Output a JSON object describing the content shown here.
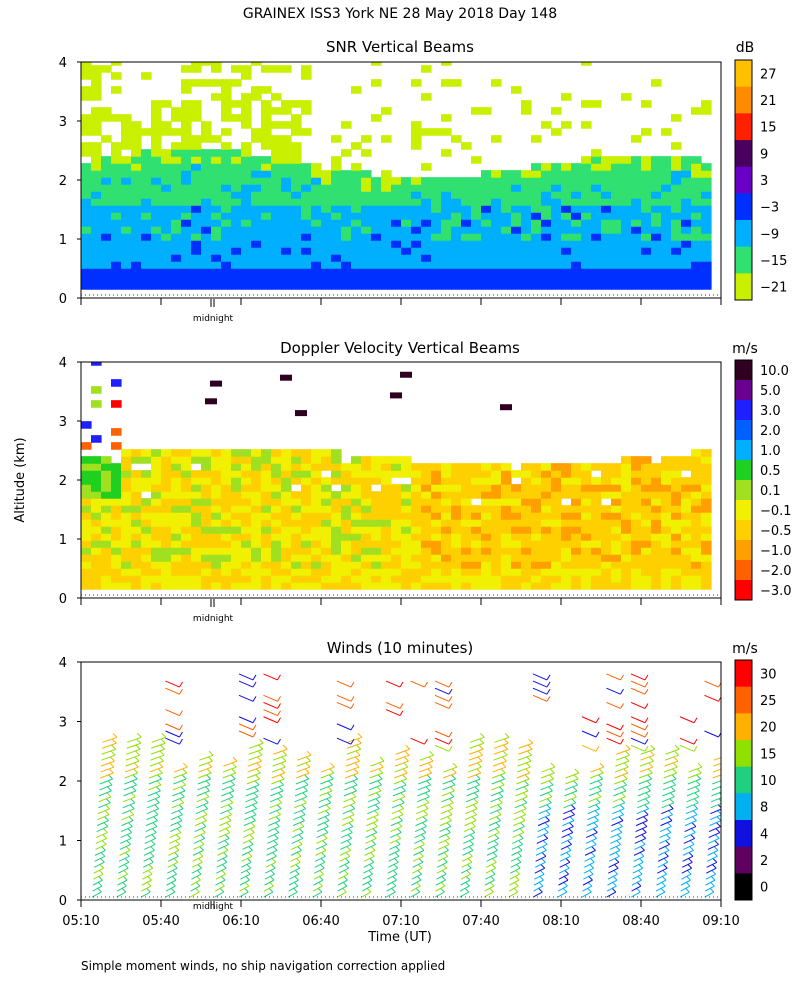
{
  "title": "GRAINEX ISS3 York NE  28 May 2018 Day 148",
  "y_axis_label": "Altitude (km)",
  "x_axis_label": "Time (UT)",
  "footnote": "Simple moment winds, no ship navigation correction applied",
  "midnight_label": "midnight",
  "x_ticks": [
    "05:10",
    "05:40",
    "06:10",
    "06:40",
    "07:10",
    "07:40",
    "08:10",
    "08:40",
    "09:10"
  ],
  "chart_data": [
    {
      "type": "heatmap",
      "title": "SNR Vertical Beams",
      "unit_label": "dB",
      "ylim": [
        0,
        4
      ],
      "y_ticks": [
        "0",
        "1",
        "2",
        "3",
        "4"
      ],
      "colorbar_labels": [
        "27",
        "21",
        "15",
        "9",
        "3",
        "−3",
        "−9",
        "−15",
        "−21"
      ],
      "colorbar_colors": [
        "#ffc000",
        "#ff8c00",
        "#ff2000",
        "#4a0060",
        "#6a00c8",
        "#0030ff",
        "#00b0ff",
        "#30e070",
        "#c8f000"
      ],
      "layers": [
        {
          "alt_range": [
            0.15,
            0.45
          ],
          "snr": 3
        },
        {
          "alt_range": [
            0.45,
            1.0
          ],
          "snr": -3
        },
        {
          "alt_range": [
            1.0,
            1.6
          ],
          "snr": -9
        },
        {
          "alt_range": [
            1.6,
            2.3
          ],
          "snr": -15
        },
        {
          "alt_range": [
            2.3,
            3.2
          ],
          "snr": -21
        }
      ]
    },
    {
      "type": "heatmap",
      "title": "Doppler Velocity Vertical Beams",
      "unit_label": "m/s",
      "ylim": [
        0,
        4
      ],
      "y_ticks": [
        "0",
        "1",
        "2",
        "3",
        "4"
      ],
      "colorbar_labels": [
        "10.0",
        "5.0",
        "3.0",
        "2.0",
        "1.0",
        "0.5",
        "0.1",
        "−0.1",
        "−0.5",
        "−1.0",
        "−2.0",
        "−3.0"
      ],
      "colorbar_colors": [
        "#300020",
        "#6a0090",
        "#2020ff",
        "#0060ff",
        "#00b0ff",
        "#20d020",
        "#a0e020",
        "#f0f000",
        "#ffd000",
        "#ffa000",
        "#ff6000",
        "#ff0000"
      ]
    },
    {
      "type": "scatter",
      "title": "Winds (10 minutes)",
      "unit_label": "m/s",
      "ylim": [
        0,
        4
      ],
      "y_ticks": [
        "0",
        "1",
        "2",
        "3",
        "4"
      ],
      "colorbar_labels": [
        "30",
        "25",
        "20",
        "15",
        "10",
        "8",
        "4",
        "2",
        "0"
      ],
      "colorbar_colors": [
        "#ff0000",
        "#ff6000",
        "#ffb000",
        "#90e000",
        "#20d080",
        "#00b0f0",
        "#1010e0",
        "#600060",
        "#000000"
      ]
    }
  ]
}
